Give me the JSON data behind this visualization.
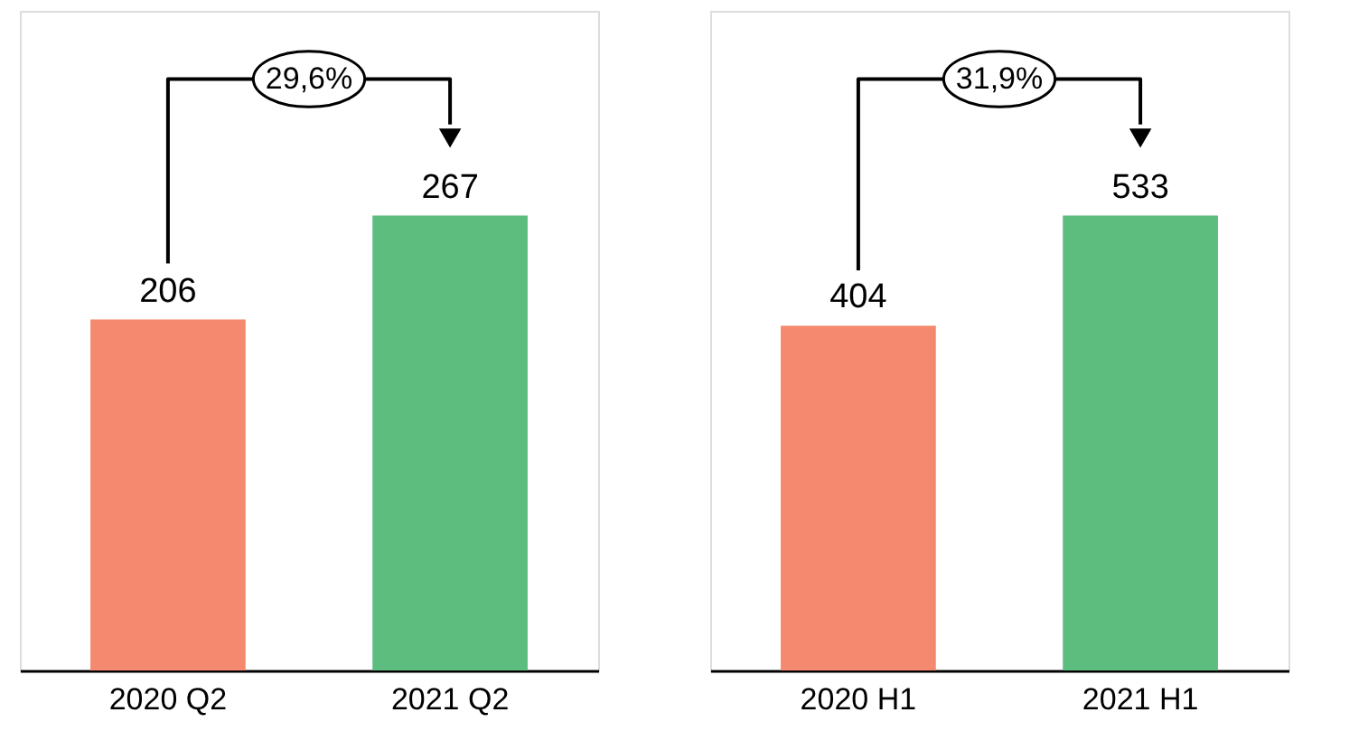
{
  "chart_data": [
    {
      "type": "bar",
      "categories": [
        "2020 Q2",
        "2021 Q2"
      ],
      "values": [
        206,
        267
      ],
      "colors": [
        "#f4896f",
        "#5cbd7f"
      ],
      "data_labels": true,
      "annotations": [
        "29,6%"
      ]
    },
    {
      "type": "bar",
      "categories": [
        "2020 H1",
        "2021 H1"
      ],
      "values": [
        404,
        533
      ],
      "colors": [
        "#f4896f",
        "#5cbd7f"
      ],
      "data_labels": true,
      "annotations": [
        "31,9%"
      ]
    }
  ]
}
